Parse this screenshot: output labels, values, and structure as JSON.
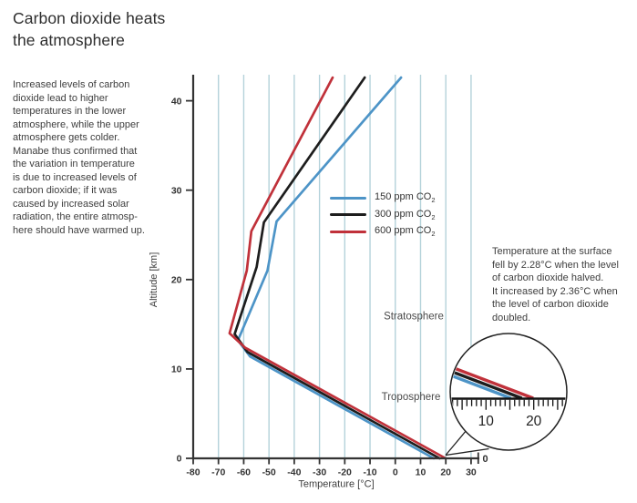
{
  "title": "Carbon dioxide heats\nthe atmosphere",
  "intro_text": "Increased levels of carbon\ndioxide lead to higher\ntemperatures in the lower\natmosphere, while the upper\natmosphere gets colder.\nManabe thus confirmed that\nthe variation in temperature\nis due to increased levels of\ncarbon dioxide; if it was\ncaused by increased solar\nradiation, the entire atmosp-\nhere should have warmed up.",
  "annotation_text": "Temperature at the surface\nfell by 2.28°C when the level\nof carbon dioxide halved.\nIt increased by 2.36°C when\nthe level of carbon dioxide\ndoubled.",
  "colors": {
    "blue": "#4d94c7",
    "black": "#1d1d1d",
    "red": "#c0313a",
    "grid": "#b4d2da",
    "axis": "#333333",
    "text": "#3e3e3e",
    "region_label": "#4a4a4a",
    "inset_stroke": "#222222"
  },
  "chart_data": {
    "type": "line",
    "title": "",
    "xlabel": "Temperature [°C]",
    "ylabel": "Altitude [km]",
    "xlim": [
      -80,
      30
    ],
    "ylim": [
      0,
      43
    ],
    "x_ticks": [
      -80,
      -70,
      -60,
      -50,
      -40,
      -30,
      -20,
      -10,
      0,
      10,
      20,
      30
    ],
    "y_ticks": [
      0,
      10,
      20,
      30,
      40
    ],
    "grid": "vertical-light-blue",
    "legend_position": "upper-right-of-plot",
    "region_labels": [
      "Stratosphere",
      "Troposphere"
    ],
    "axis_end_label": "0",
    "series": [
      {
        "name": "150 ppm CO2",
        "label_main": "150 ppm CO",
        "label_sub": "2",
        "color_key": "blue",
        "surface_temp_c": 15.2,
        "points": [
          [
            15.2,
            0
          ],
          [
            -57.5,
            11.4
          ],
          [
            -62.3,
            13.2
          ],
          [
            -50.6,
            21
          ],
          [
            -47,
            26.5
          ],
          [
            2.3,
            42.6
          ]
        ]
      },
      {
        "name": "300 ppm CO2",
        "label_main": "300 ppm CO",
        "label_sub": "2",
        "color_key": "black",
        "surface_temp_c": 17.5,
        "points": [
          [
            17.5,
            0
          ],
          [
            -58.5,
            11.9
          ],
          [
            -63.6,
            13.9
          ],
          [
            -54.9,
            21.4
          ],
          [
            -52,
            26.4
          ],
          [
            -12.1,
            42.6
          ]
        ]
      },
      {
        "name": "600 ppm CO2",
        "label_main": "600 ppm CO",
        "label_sub": "2",
        "color_key": "red",
        "surface_temp_c": 19.9,
        "points": [
          [
            19.9,
            0
          ],
          [
            -59.5,
            12.4
          ],
          [
            -65.6,
            14.0
          ],
          [
            -58.8,
            21
          ],
          [
            -57,
            25.4
          ],
          [
            -24.8,
            42.6
          ]
        ]
      }
    ],
    "inset": {
      "description": "magnifier showing surface temperatures",
      "tick_start": 3,
      "tick_end": 26,
      "tick_labels": [
        10,
        20
      ]
    }
  }
}
